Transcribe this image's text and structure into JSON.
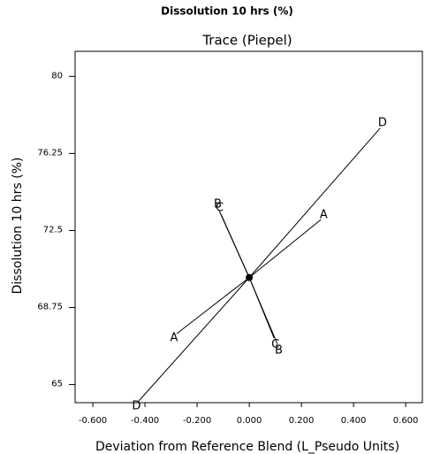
{
  "chart_data": {
    "type": "line",
    "title": "Dissolution 10 hrs (%)",
    "subtitle": "Trace (Piepel)",
    "x_label": "Deviation from Reference Blend (L_Pseudo Units)",
    "y_label": "Dissolution 10 hrs (%)",
    "xlim": [
      -0.668,
      0.664
    ],
    "ylim": [
      64.12,
      81.22
    ],
    "xticks": [
      {
        "value": -0.6,
        "label": "-0.600"
      },
      {
        "value": -0.4,
        "label": "-0.400"
      },
      {
        "value": -0.2,
        "label": "-0.200"
      },
      {
        "value": 0,
        "label": "0.000"
      },
      {
        "value": 0.2,
        "label": "0.200"
      },
      {
        "value": 0.4,
        "label": "0.400"
      },
      {
        "value": 0.6,
        "label": "0.600"
      }
    ],
    "yticks": [
      65,
      68.75,
      72.5,
      76.25,
      80
    ],
    "reference_point": {
      "x": 0,
      "y": 70.21
    },
    "series": [
      {
        "name": "A",
        "color": "#000000",
        "x": [
          -0.278,
          0,
          0.275
        ],
        "values": [
          67.48,
          70.21,
          73.03
        ]
      },
      {
        "name": "B",
        "color": "#000000",
        "x": [
          -0.115,
          0,
          0.108
        ],
        "values": [
          73.45,
          70.21,
          66.97
        ]
      },
      {
        "name": "C",
        "color": "#000000",
        "x": [
          -0.108,
          0,
          0.095
        ],
        "values": [
          73.28,
          70.21,
          67.27
        ]
      },
      {
        "name": "D",
        "color": "#000000",
        "x": [
          -0.424,
          0,
          0.502
        ],
        "values": [
          64.2,
          70.21,
          77.48
        ]
      }
    ]
  }
}
